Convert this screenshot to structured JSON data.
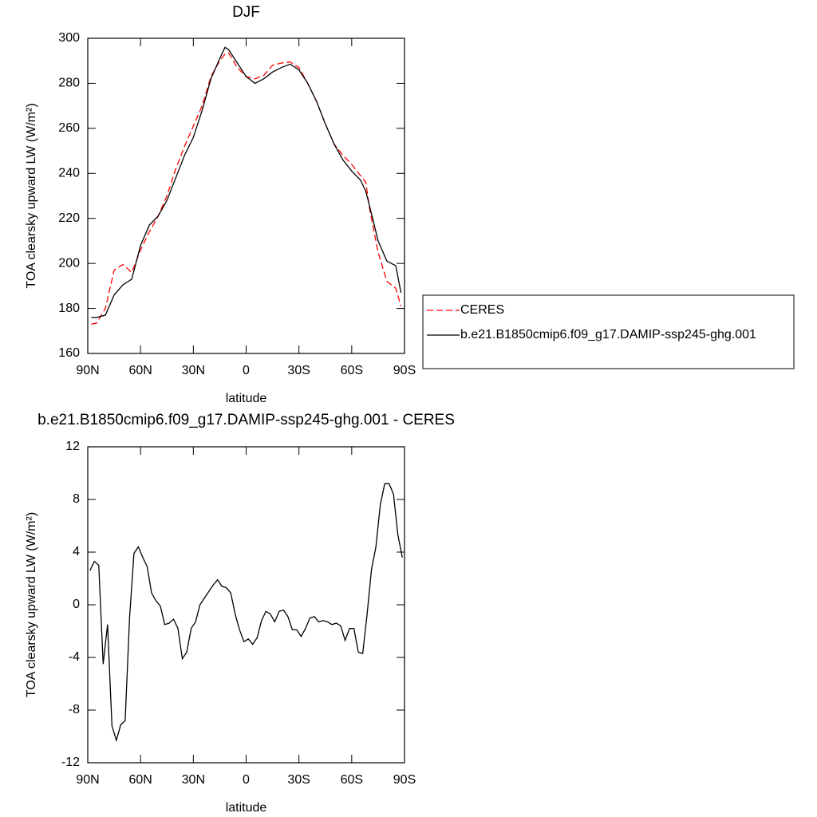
{
  "chart_data": [
    {
      "type": "line",
      "title": "DJF",
      "xlabel": "latitude",
      "ylabel": "TOA clearsky upward LW (W/m²)",
      "x": [
        88,
        85,
        80,
        75,
        70,
        65,
        60,
        55,
        50,
        45,
        40,
        35,
        30,
        25,
        20,
        15,
        12,
        10,
        5,
        0,
        -5,
        -10,
        -15,
        -20,
        -25,
        -30,
        -35,
        -40,
        -45,
        -50,
        -55,
        -60,
        -65,
        -68,
        -70,
        -75,
        -80,
        -85,
        -88
      ],
      "series": [
        {
          "name": "CERES",
          "color": "#ff0000",
          "style": "dashed",
          "values": [
            173,
            173.5,
            180,
            197,
            199.5,
            196,
            206,
            214,
            221,
            230,
            242,
            252,
            261,
            270,
            283,
            290,
            293,
            293.5,
            287,
            283,
            282,
            283.5,
            288,
            289,
            289.5,
            287,
            280,
            272,
            262,
            253,
            248,
            244,
            239,
            236,
            225,
            205,
            192,
            189,
            181
          ]
        },
        {
          "name": "b.e21.B1850cmip6.f09_g17.DAMIP-ssp245-ghg.001",
          "color": "#000000",
          "style": "solid",
          "values": [
            176,
            176,
            177,
            186,
            190.5,
            193,
            208,
            217,
            221,
            228,
            238,
            248,
            256,
            268,
            282,
            291,
            296,
            295,
            289,
            283,
            280,
            282,
            285,
            287,
            288.5,
            286,
            280,
            272,
            262,
            253,
            246,
            241,
            237,
            232,
            226,
            210,
            201,
            199,
            187
          ]
        }
      ],
      "xlim": [
        90,
        -90
      ],
      "xticks": [
        {
          "value": 90,
          "label": "90N"
        },
        {
          "value": 60,
          "label": "60N"
        },
        {
          "value": 30,
          "label": "30N"
        },
        0,
        {
          "value": -30,
          "label": "30S"
        },
        {
          "value": -60,
          "label": "60S"
        },
        {
          "value": -90,
          "label": "90S"
        }
      ],
      "ylim": [
        160,
        300
      ],
      "yticks": [
        160,
        180,
        200,
        220,
        240,
        260,
        280,
        300
      ],
      "legend": "right"
    },
    {
      "type": "line",
      "title": "b.e21.B1850cmip6.f09_g17.DAMIP-ssp245-ghg.001 - CERES",
      "xlabel": "latitude",
      "ylabel": "TOA clearsky upward LW (W/m²)",
      "x": [
        88.75,
        86.25,
        83.75,
        81.25,
        78.75,
        76.25,
        73.75,
        71.25,
        68.75,
        66.25,
        63.75,
        61.25,
        58.75,
        56.25,
        53.75,
        51.25,
        48.75,
        46.25,
        43.75,
        41.25,
        38.75,
        36.25,
        33.75,
        31.25,
        28.75,
        26.25,
        23.75,
        21.25,
        18.75,
        16.25,
        13.75,
        11.25,
        8.75,
        6.25,
        3.75,
        1.25,
        -1.25,
        -3.75,
        -6.25,
        -8.75,
        -11.25,
        -13.75,
        -16.25,
        -18.75,
        -21.25,
        -23.75,
        -26.25,
        -28.75,
        -31.25,
        -33.75,
        -36.25,
        -38.75,
        -41.25,
        -43.75,
        -46.25,
        -48.75,
        -51.25,
        -53.75,
        -56.25,
        -58.75,
        -61.25,
        -63.75,
        -66.25,
        -68.75,
        -71.25,
        -73.75,
        -76.25,
        -78.75,
        -81.25,
        -83.75,
        -86.25,
        -88.75
      ],
      "series": [
        {
          "name": "b.e21.B1850cmip6.f09_g17.DAMIP-ssp245-ghg.001 - CERES",
          "color": "#000000",
          "style": "solid",
          "values": [
            2.6,
            3.3,
            3.0,
            -4.5,
            -1.5,
            -9.2,
            -10.3,
            -9.1,
            -8.8,
            -1.0,
            3.9,
            4.4,
            3.6,
            2.9,
            0.9,
            0.3,
            -0.1,
            -1.5,
            -1.4,
            -1.1,
            -1.8,
            -4.1,
            -3.6,
            -1.8,
            -1.3,
            0,
            0.5,
            1.0,
            1.5,
            1.9,
            1.4,
            1.3,
            0.9,
            -0.7,
            -1.9,
            -2.8,
            -2.6,
            -3.0,
            -2.5,
            -1.2,
            -0.5,
            -0.7,
            -1.3,
            -0.5,
            -0.4,
            -0.9,
            -1.9,
            -1.9,
            -2.4,
            -1.8,
            -1.0,
            -0.9,
            -1.3,
            -1.2,
            -1.3,
            -1.5,
            -1.4,
            -1.6,
            -2.7,
            -1.8,
            -1.8,
            -3.6,
            -3.7,
            -0.7,
            2.7,
            4.4,
            7.6,
            9.2,
            9.2,
            8.4,
            5.3,
            3.6
          ]
        }
      ],
      "xlim": [
        90,
        -90
      ],
      "xticks": [
        {
          "value": 90,
          "label": "90N"
        },
        {
          "value": 60,
          "label": "60N"
        },
        {
          "value": 30,
          "label": "30N"
        },
        0,
        {
          "value": -30,
          "label": "30S"
        },
        {
          "value": -60,
          "label": "60S"
        },
        {
          "value": -90,
          "label": "90S"
        }
      ],
      "ylim": [
        -12,
        12
      ],
      "yticks": [
        -12,
        -8,
        -4,
        0,
        4,
        8,
        12
      ]
    }
  ]
}
